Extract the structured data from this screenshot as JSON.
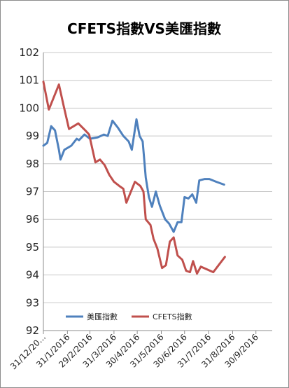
{
  "chart_data": {
    "type": "line",
    "title": "CFETS指數VS美匯指數",
    "xlabel": "",
    "ylabel": "",
    "ylim": [
      92,
      102
    ],
    "yticks": [
      "92",
      "93",
      "94",
      "95",
      "96",
      "97",
      "98",
      "99",
      "100",
      "101",
      "102"
    ],
    "xlim": [
      "2015-12-31",
      "2016-10-21"
    ],
    "xtick_labels": [
      {
        "date": "2015-12-31",
        "label": "31/12/20..."
      },
      {
        "date": "2016-01-31",
        "label": "31/1/2016"
      },
      {
        "date": "2016-02-29",
        "label": "29/2/2016"
      },
      {
        "date": "2016-03-31",
        "label": "31/3/2016"
      },
      {
        "date": "2016-04-30",
        "label": "30/4/2016"
      },
      {
        "date": "2016-05-31",
        "label": "31/5/2016"
      },
      {
        "date": "2016-06-30",
        "label": "30/6/2016"
      },
      {
        "date": "2016-07-31",
        "label": "31/7/2016"
      },
      {
        "date": "2016-08-31",
        "label": "31/8/2016"
      },
      {
        "date": "2016-09-30",
        "label": "30/9/2016"
      }
    ],
    "grid": "horizontal",
    "legend_position": "bottom-left",
    "series": [
      {
        "name": "美匯指數",
        "color": "#4f81bd",
        "points": [
          [
            "2015-12-31",
            98.65
          ],
          [
            "2016-01-05",
            98.75
          ],
          [
            "2016-01-10",
            99.35
          ],
          [
            "2016-01-15",
            99.2
          ],
          [
            "2016-01-20",
            98.5
          ],
          [
            "2016-01-22",
            98.15
          ],
          [
            "2016-01-27",
            98.5
          ],
          [
            "2016-02-05",
            98.65
          ],
          [
            "2016-02-12",
            98.9
          ],
          [
            "2016-02-15",
            98.85
          ],
          [
            "2016-02-22",
            99.05
          ],
          [
            "2016-02-29",
            98.9
          ],
          [
            "2016-03-10",
            98.95
          ],
          [
            "2016-03-18",
            99.05
          ],
          [
            "2016-03-23",
            99.0
          ],
          [
            "2016-03-29",
            99.55
          ],
          [
            "2016-04-05",
            99.3
          ],
          [
            "2016-04-12",
            99.0
          ],
          [
            "2016-04-19",
            98.8
          ],
          [
            "2016-04-23",
            98.5
          ],
          [
            "2016-04-29",
            99.6
          ],
          [
            "2016-05-03",
            99.0
          ],
          [
            "2016-05-07",
            98.8
          ],
          [
            "2016-05-11",
            97.5
          ],
          [
            "2016-05-15",
            96.8
          ],
          [
            "2016-05-19",
            96.45
          ],
          [
            "2016-05-24",
            97.0
          ],
          [
            "2016-05-29",
            96.5
          ],
          [
            "2016-06-05",
            96.0
          ],
          [
            "2016-06-10",
            95.85
          ],
          [
            "2016-06-16",
            95.55
          ],
          [
            "2016-06-21",
            95.9
          ],
          [
            "2016-06-26",
            95.9
          ],
          [
            "2016-06-30",
            96.8
          ],
          [
            "2016-07-05",
            96.75
          ],
          [
            "2016-07-10",
            96.9
          ],
          [
            "2016-07-15",
            96.6
          ],
          [
            "2016-07-19",
            97.4
          ],
          [
            "2016-07-26",
            97.45
          ],
          [
            "2016-08-01",
            97.45
          ],
          [
            "2016-08-10",
            97.35
          ],
          [
            "2016-08-20",
            97.25
          ]
        ]
      },
      {
        "name": "CFETS指數",
        "color": "#c0504d",
        "points": [
          [
            "2015-12-31",
            100.95
          ],
          [
            "2016-01-07",
            99.95
          ],
          [
            "2016-01-20",
            100.85
          ],
          [
            "2016-01-26",
            100.1
          ],
          [
            "2016-02-02",
            99.25
          ],
          [
            "2016-02-14",
            99.45
          ],
          [
            "2016-02-23",
            99.2
          ],
          [
            "2016-02-28",
            99.05
          ],
          [
            "2016-03-07",
            98.05
          ],
          [
            "2016-03-13",
            98.15
          ],
          [
            "2016-03-19",
            97.95
          ],
          [
            "2016-03-25",
            97.6
          ],
          [
            "2016-03-31",
            97.35
          ],
          [
            "2016-04-07",
            97.2
          ],
          [
            "2016-04-12",
            97.1
          ],
          [
            "2016-04-16",
            96.6
          ],
          [
            "2016-04-27",
            97.35
          ],
          [
            "2016-05-04",
            97.2
          ],
          [
            "2016-05-08",
            97.0
          ],
          [
            "2016-05-11",
            96.0
          ],
          [
            "2016-05-17",
            95.8
          ],
          [
            "2016-05-21",
            95.3
          ],
          [
            "2016-05-26",
            94.95
          ],
          [
            "2016-06-01",
            94.25
          ],
          [
            "2016-06-06",
            94.35
          ],
          [
            "2016-06-11",
            95.2
          ],
          [
            "2016-06-16",
            95.35
          ],
          [
            "2016-06-21",
            94.7
          ],
          [
            "2016-06-27",
            94.55
          ],
          [
            "2016-07-02",
            94.15
          ],
          [
            "2016-07-07",
            94.1
          ],
          [
            "2016-07-11",
            94.5
          ],
          [
            "2016-07-16",
            94.05
          ],
          [
            "2016-07-21",
            94.3
          ],
          [
            "2016-08-06",
            94.1
          ],
          [
            "2016-08-21",
            94.65
          ]
        ]
      }
    ]
  },
  "colors": {
    "gridline": "#c8c8c8",
    "axis": "#8c8c8c",
    "frame_border": "#8c8c8c"
  }
}
